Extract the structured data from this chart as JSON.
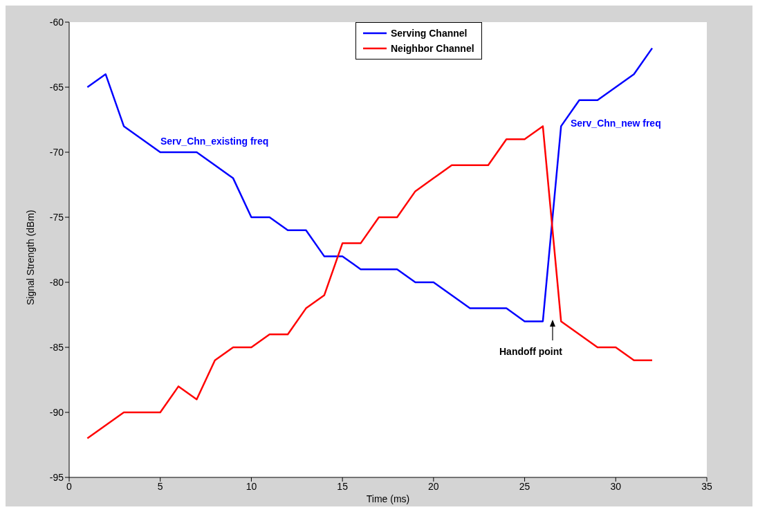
{
  "chart_data": {
    "type": "line",
    "xlabel": "Time (ms)",
    "ylabel": "Signal Strength (dBm)",
    "x": [
      1,
      2,
      3,
      4,
      5,
      6,
      7,
      8,
      9,
      10,
      11,
      12,
      13,
      14,
      15,
      16,
      17,
      18,
      19,
      20,
      21,
      22,
      23,
      24,
      25,
      26,
      27,
      28,
      29,
      30,
      31,
      32
    ],
    "series": [
      {
        "name": "Serving Channel",
        "color": "#0000ff",
        "values": [
          -65,
          -64,
          -68,
          -69,
          -70,
          -70,
          -70,
          -71,
          -72,
          -75,
          -75,
          -76,
          -76,
          -78,
          -78,
          -79,
          -79,
          -79,
          -80,
          -80,
          -81,
          -82,
          -82,
          -82,
          -83,
          -83,
          -68,
          -66,
          -66,
          -65,
          -64,
          -62
        ]
      },
      {
        "name": "Neighbor Channel",
        "color": "#ff0000",
        "values": [
          -92,
          -91,
          -90,
          -90,
          -90,
          -88,
          -89,
          -86,
          -85,
          -85,
          -84,
          -84,
          -82,
          -81,
          -77,
          -77,
          -75,
          -75,
          -73,
          -72,
          -71,
          -71,
          -71,
          -69,
          -69,
          -68,
          -83,
          -84,
          -85,
          -85,
          -86,
          -86
        ]
      }
    ],
    "annotations": [
      "Serv_Chn_existing freq",
      "Serv_Chn_new freq",
      "Handoff point"
    ],
    "xlim": [
      0,
      35
    ],
    "xticks": [
      0,
      5,
      10,
      15,
      20,
      25,
      30,
      35
    ],
    "ylim": [
      -95,
      -60
    ],
    "yticks": [
      -95,
      -90,
      -85,
      -80,
      -75,
      -70,
      -65,
      -60
    ],
    "legend": "top",
    "marker": "none",
    "line_style": "solid"
  }
}
